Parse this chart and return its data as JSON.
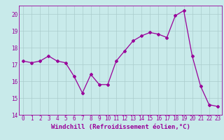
{
  "x": [
    0,
    1,
    2,
    3,
    4,
    5,
    6,
    7,
    8,
    9,
    10,
    11,
    12,
    13,
    14,
    15,
    16,
    17,
    18,
    19,
    20,
    21,
    22,
    23
  ],
  "y": [
    17.2,
    17.1,
    17.2,
    17.5,
    17.2,
    17.1,
    16.3,
    15.3,
    16.4,
    15.8,
    15.8,
    17.2,
    17.8,
    18.4,
    18.7,
    18.9,
    18.8,
    18.6,
    19.9,
    20.2,
    17.5,
    15.7,
    14.6,
    14.5
  ],
  "line_color": "#990099",
  "marker": "D",
  "marker_size": 2.0,
  "bg_color": "#c8eaea",
  "grid_color": "#aacccc",
  "ylim": [
    14,
    20.5
  ],
  "yticks": [
    14,
    15,
    16,
    17,
    18,
    19,
    20
  ],
  "xlabel": "Windchill (Refroidissement éolien,°C)",
  "tick_fontsize": 5.5,
  "xlabel_fontsize": 6.5,
  "line_width": 0.9
}
